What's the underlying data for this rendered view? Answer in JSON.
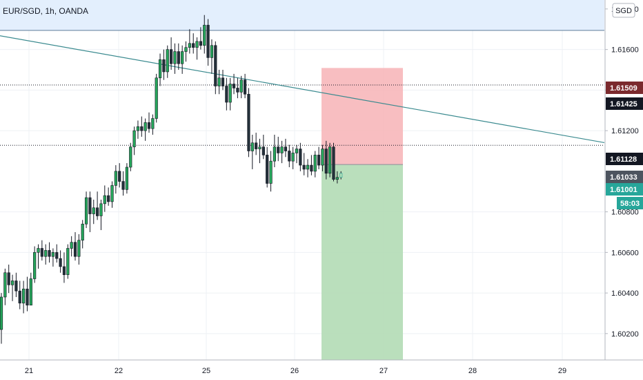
{
  "symbol_title": "EUR/SGD, 1h, OANDA",
  "currency_button": "SGD",
  "chart_data": {
    "type": "candlestick",
    "title": "EUR/SGD, 1h, OANDA",
    "y_ticks": [
      "1.61800",
      "1.61600",
      "1.61400",
      "1.61200",
      "1.60800",
      "1.60600",
      "1.60400",
      "1.60200"
    ],
    "x_ticks": [
      "21",
      "22",
      "25",
      "26",
      "27",
      "28",
      "29"
    ],
    "ylim": [
      1.6007,
      1.61844
    ],
    "grid": true,
    "price_tags": [
      {
        "label": "1.61509",
        "value": 1.61509,
        "color": "#7b2a2e"
      },
      {
        "label": "1.61425",
        "value": 1.61425,
        "color": "#131722"
      },
      {
        "label": "1.61128",
        "value": 1.61128,
        "color": "#131722"
      },
      {
        "label": "1.61033",
        "value": 1.61033,
        "color": "#4d545f"
      },
      {
        "label": "1.61001",
        "value": 1.61001,
        "color": "#26a69a"
      }
    ],
    "countdown": "58:03",
    "horizontal_lines": [
      1.61425,
      1.61128
    ],
    "alert_line": 1.618,
    "trend_line": {
      "from": {
        "x": "20",
        "y": 1.61722
      },
      "to": {
        "x": "29.5",
        "y": 1.61141
      }
    },
    "position": {
      "type": "short",
      "stop": 1.61509,
      "entry": 1.61033,
      "target": 1.6007,
      "start_day": "26",
      "end_day": "27"
    },
    "candles": [
      [
        1.6022,
        1.604,
        1.6015,
        1.6038
      ],
      [
        1.6038,
        1.6052,
        1.6034,
        1.605
      ],
      [
        1.605,
        1.6054,
        1.604,
        1.6044
      ],
      [
        1.6044,
        1.6049,
        1.6036,
        1.6046
      ],
      [
        1.6046,
        1.605,
        1.6038,
        1.6041
      ],
      [
        1.6041,
        1.6046,
        1.6032,
        1.6035
      ],
      [
        1.6035,
        1.6046,
        1.603,
        1.6042
      ],
      [
        1.6042,
        1.6048,
        1.6031,
        1.6034
      ],
      [
        1.6034,
        1.605,
        1.6034,
        1.6047
      ],
      [
        1.6047,
        1.6063,
        1.6045,
        1.606
      ],
      [
        1.606,
        1.6064,
        1.6052,
        1.6062
      ],
      [
        1.6062,
        1.6066,
        1.6056,
        1.6058
      ],
      [
        1.6058,
        1.6064,
        1.6054,
        1.6061
      ],
      [
        1.6061,
        1.6065,
        1.6055,
        1.6058
      ],
      [
        1.6058,
        1.6062,
        1.6053,
        1.606
      ],
      [
        1.606,
        1.6064,
        1.6055,
        1.6057
      ],
      [
        1.6057,
        1.6061,
        1.605,
        1.6053
      ],
      [
        1.6053,
        1.606,
        1.6045,
        1.6049
      ],
      [
        1.6049,
        1.6064,
        1.6047,
        1.6062
      ],
      [
        1.6062,
        1.6068,
        1.6058,
        1.6065
      ],
      [
        1.6065,
        1.607,
        1.6056,
        1.6058
      ],
      [
        1.6058,
        1.6069,
        1.6054,
        1.6066
      ],
      [
        1.6066,
        1.6076,
        1.6062,
        1.6074
      ],
      [
        1.6074,
        1.609,
        1.6072,
        1.6087
      ],
      [
        1.6087,
        1.609,
        1.607,
        1.6079
      ],
      [
        1.6079,
        1.6086,
        1.6074,
        1.6082
      ],
      [
        1.6082,
        1.609,
        1.6076,
        1.6078
      ],
      [
        1.6078,
        1.6086,
        1.6071,
        1.6084
      ],
      [
        1.6084,
        1.6093,
        1.608,
        1.6088
      ],
      [
        1.6088,
        1.6092,
        1.6083,
        1.6085
      ],
      [
        1.6085,
        1.6095,
        1.6082,
        1.6093
      ],
      [
        1.6093,
        1.6103,
        1.6089,
        1.61
      ],
      [
        1.61,
        1.6104,
        1.6092,
        1.6095
      ],
      [
        1.6095,
        1.61,
        1.6088,
        1.6091
      ],
      [
        1.6091,
        1.6104,
        1.6089,
        1.6102
      ],
      [
        1.6102,
        1.6114,
        1.61,
        1.6112
      ],
      [
        1.6112,
        1.6122,
        1.6108,
        1.612
      ],
      [
        1.612,
        1.6125,
        1.6116,
        1.6122
      ],
      [
        1.6122,
        1.6127,
        1.6117,
        1.612
      ],
      [
        1.612,
        1.6126,
        1.6115,
        1.6124
      ],
      [
        1.6124,
        1.6129,
        1.6119,
        1.6121
      ],
      [
        1.6121,
        1.6128,
        1.6118,
        1.6126
      ],
      [
        1.6126,
        1.6148,
        1.6124,
        1.6146
      ],
      [
        1.6146,
        1.6158,
        1.6142,
        1.6155
      ],
      [
        1.6155,
        1.616,
        1.6145,
        1.6149
      ],
      [
        1.6149,
        1.6162,
        1.6146,
        1.616
      ],
      [
        1.616,
        1.6166,
        1.615,
        1.6153
      ],
      [
        1.6153,
        1.6163,
        1.6148,
        1.6159
      ],
      [
        1.6159,
        1.6163,
        1.615,
        1.6153
      ],
      [
        1.6153,
        1.6162,
        1.6148,
        1.6159
      ],
      [
        1.6159,
        1.6164,
        1.6154,
        1.6161
      ],
      [
        1.6161,
        1.617,
        1.6158,
        1.6163
      ],
      [
        1.6163,
        1.6168,
        1.6158,
        1.6161
      ],
      [
        1.6161,
        1.6166,
        1.6155,
        1.6164
      ],
      [
        1.6164,
        1.6171,
        1.616,
        1.6162
      ],
      [
        1.6162,
        1.6177,
        1.6158,
        1.6172
      ],
      [
        1.6172,
        1.6175,
        1.6152,
        1.6156
      ],
      [
        1.6156,
        1.6165,
        1.6148,
        1.6162
      ],
      [
        1.6162,
        1.6164,
        1.6138,
        1.6142
      ],
      [
        1.6142,
        1.615,
        1.6138,
        1.6146
      ],
      [
        1.6146,
        1.615,
        1.614,
        1.6142
      ],
      [
        1.6142,
        1.6146,
        1.613,
        1.6134
      ],
      [
        1.6134,
        1.6146,
        1.613,
        1.6143
      ],
      [
        1.6143,
        1.6148,
        1.6138,
        1.6141
      ],
      [
        1.6141,
        1.6146,
        1.6136,
        1.6139
      ],
      [
        1.6139,
        1.6147,
        1.6136,
        1.6145
      ],
      [
        1.6145,
        1.6148,
        1.6136,
        1.6138
      ],
      [
        1.6138,
        1.6141,
        1.6107,
        1.611
      ],
      [
        1.611,
        1.6118,
        1.6101,
        1.6114
      ],
      [
        1.6114,
        1.6119,
        1.6108,
        1.6111
      ],
      [
        1.6111,
        1.6116,
        1.6104,
        1.6112
      ],
      [
        1.6112,
        1.6118,
        1.6106,
        1.6108
      ],
      [
        1.6108,
        1.6112,
        1.6092,
        1.6094
      ],
      [
        1.6094,
        1.611,
        1.609,
        1.6105
      ],
      [
        1.6105,
        1.6118,
        1.6102,
        1.6112
      ],
      [
        1.6112,
        1.6117,
        1.6105,
        1.6109
      ],
      [
        1.6109,
        1.6115,
        1.6104,
        1.6112
      ],
      [
        1.6112,
        1.6116,
        1.6107,
        1.611
      ],
      [
        1.611,
        1.6113,
        1.6102,
        1.6105
      ],
      [
        1.6105,
        1.6112,
        1.6101,
        1.6109
      ],
      [
        1.6109,
        1.6113,
        1.6104,
        1.6111
      ],
      [
        1.6111,
        1.6114,
        1.61,
        1.6103
      ],
      [
        1.6103,
        1.6109,
        1.6098,
        1.6101
      ],
      [
        1.6101,
        1.6106,
        1.6097,
        1.6103
      ],
      [
        1.6103,
        1.6108,
        1.6098,
        1.61
      ],
      [
        1.61,
        1.611,
        1.6097,
        1.6108
      ],
      [
        1.6108,
        1.6112,
        1.6101,
        1.6103
      ],
      [
        1.6103,
        1.6113,
        1.61,
        1.6111
      ],
      [
        1.6111,
        1.6115,
        1.6096,
        1.6099
      ],
      [
        1.6099,
        1.6114,
        1.6097,
        1.6112
      ],
      [
        1.6112,
        1.6114,
        1.6095,
        1.6096
      ],
      [
        1.6096,
        1.61,
        1.6094,
        1.6097
      ],
      [
        1.6097,
        1.61,
        1.6096,
        1.6099
      ]
    ]
  }
}
